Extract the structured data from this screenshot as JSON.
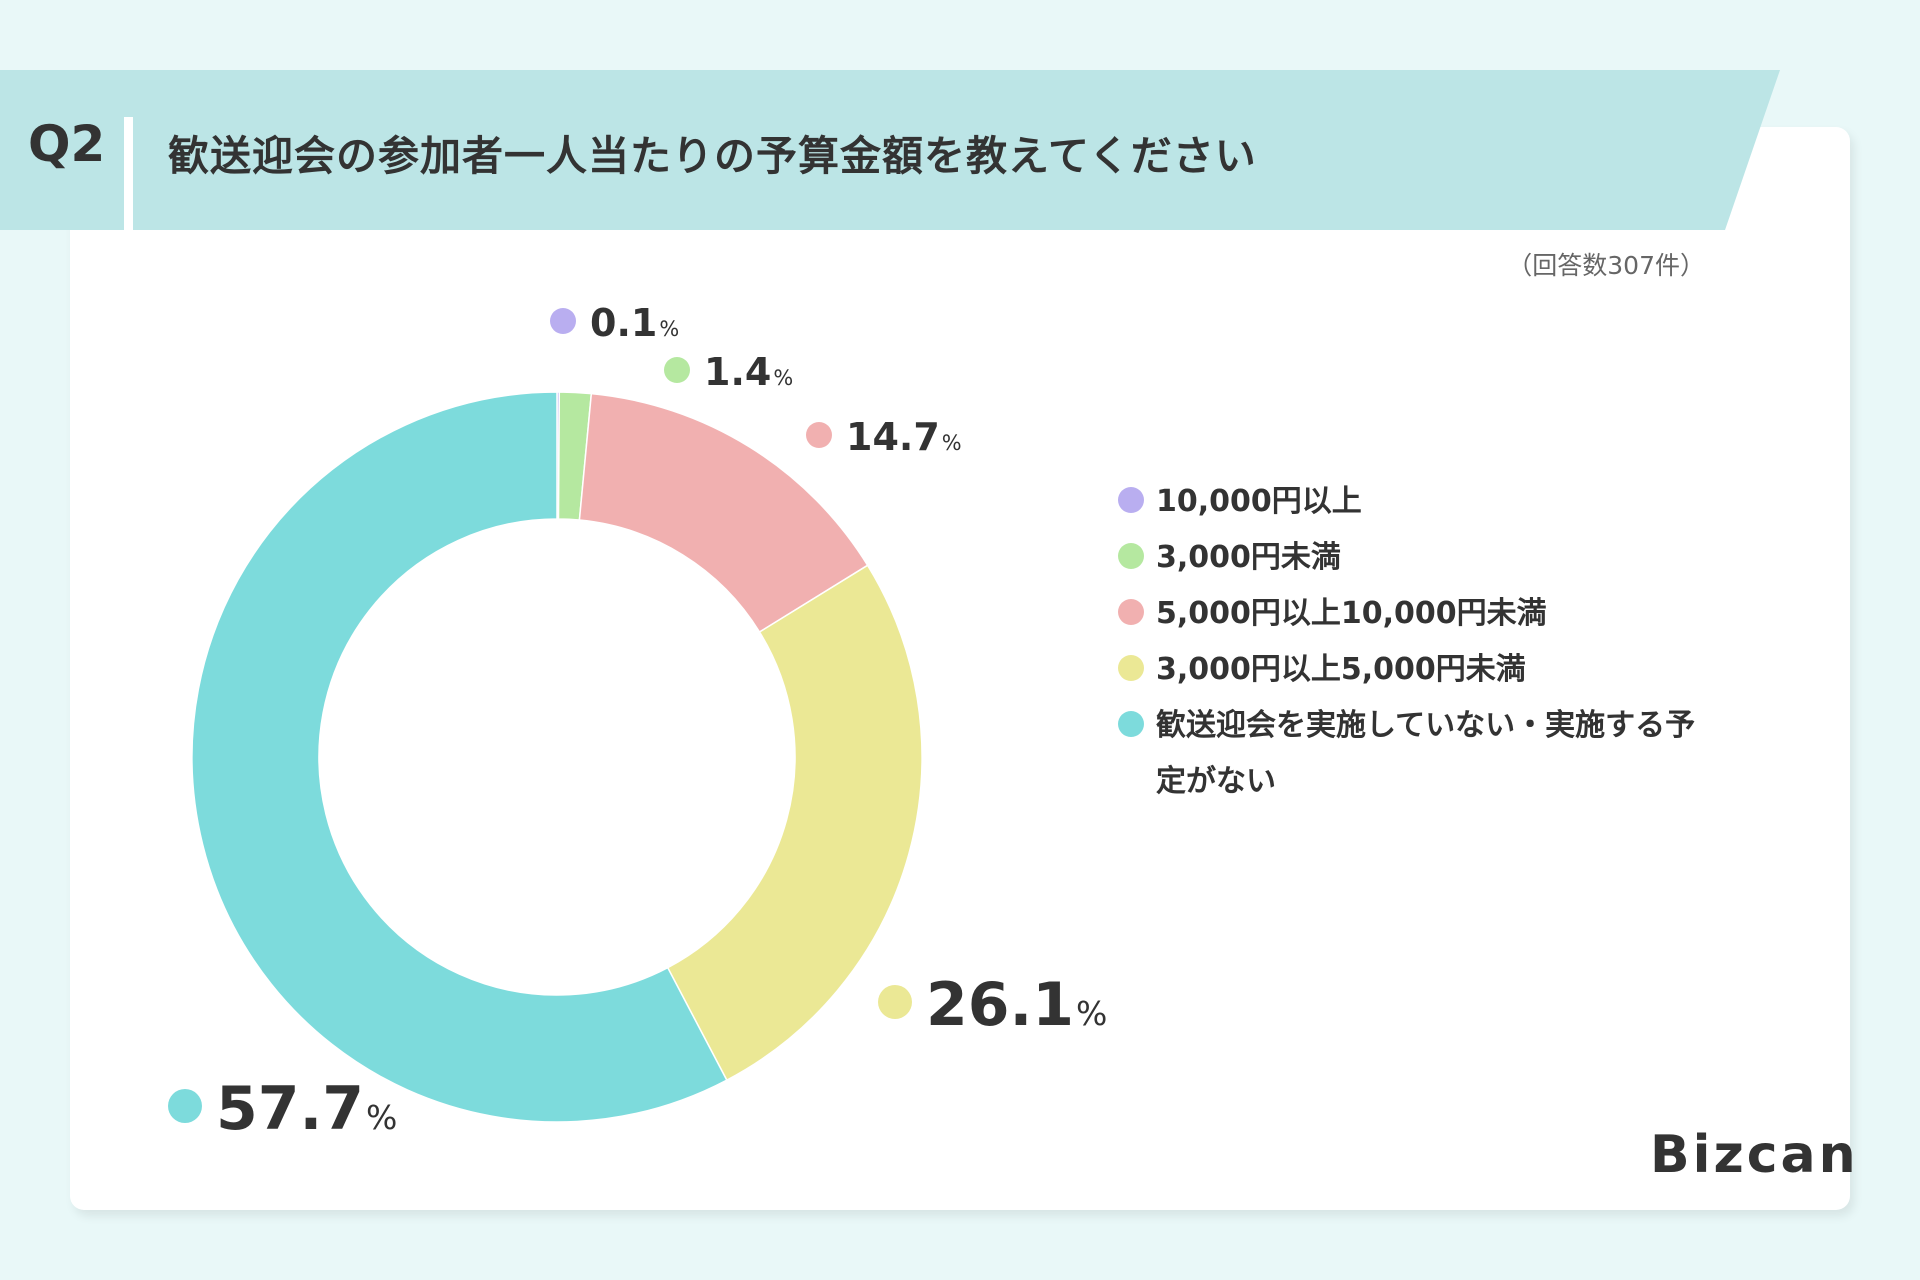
{
  "header": {
    "question": "Q2",
    "title": "歓送迎会の参加者一人当たりの予算金額を教えてください"
  },
  "response_count": "（回答数307件）",
  "logo": "Bizcan",
  "chart_data": {
    "type": "pie",
    "donut": true,
    "categories": [
      "10,000円以上",
      "3,000円未満",
      "5,000円以上10,000円未満",
      "3,000円以上5,000円未満",
      "歓送迎会を実施していない・実施する予定がない"
    ],
    "values": [
      0.1,
      1.4,
      14.7,
      26.1,
      57.7
    ],
    "labels": [
      "0.1",
      "1.4",
      "14.7",
      "26.1",
      "57.7"
    ],
    "unit": "%",
    "colors": [
      "#b9aef0",
      "#b5e8a0",
      "#f1b0b0",
      "#ebe895",
      "#7ddbdc"
    ],
    "legend_position": "right"
  }
}
